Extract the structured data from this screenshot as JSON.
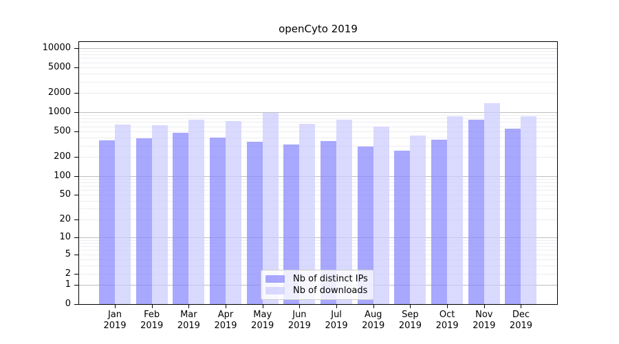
{
  "title": "openCyto 2019",
  "colors": {
    "background": "#ffffff",
    "axis": "#000000",
    "grid_major": "#bdbdbd",
    "grid_minor": "#ededf2",
    "legend_border": "#cccccc",
    "series_dark": "#8888ff",
    "series_light": "#ccccff"
  },
  "chart_data": {
    "type": "bar",
    "title": "openCyto 2019",
    "categories": [
      "Jan",
      "Feb",
      "Mar",
      "Apr",
      "May",
      "Jun",
      "Jul",
      "Aug",
      "Sep",
      "Oct",
      "Nov",
      "Dec"
    ],
    "year_label": "2019",
    "series": [
      {
        "name": "Nb of distinct IPs",
        "color": "#8888ff",
        "values": [
          366,
          388,
          477,
          398,
          343,
          310,
          349,
          286,
          248,
          373,
          763,
          557
        ]
      },
      {
        "name": "Nb of downloads",
        "color": "#ccccff",
        "values": [
          647,
          626,
          756,
          732,
          968,
          651,
          756,
          596,
          429,
          865,
          1381,
          860
        ]
      }
    ],
    "bar_alpha": 0.73,
    "xlabel": "",
    "ylabel": "",
    "yscale": "symlog",
    "yticks": [
      10000,
      5000,
      2000,
      1000,
      500,
      200,
      100,
      50,
      20,
      10,
      5,
      2,
      1,
      0
    ],
    "ylim": [
      0,
      12500
    ],
    "grid": "on",
    "legend_position": "lower center"
  }
}
